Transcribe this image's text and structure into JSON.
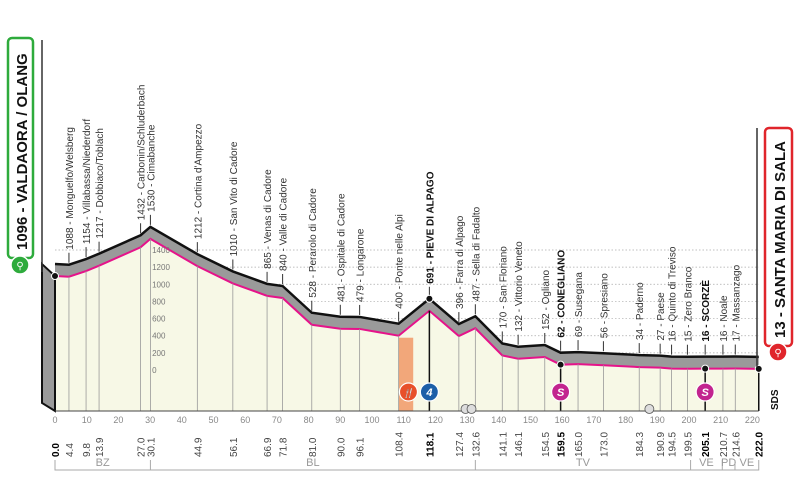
{
  "chart_data": {
    "type": "area",
    "title": "",
    "xlabel": "",
    "ylabel": "",
    "xlim": [
      0,
      222
    ],
    "ylim": [
      0,
      1400
    ],
    "grid": true,
    "x_ticks": [
      0,
      10,
      20,
      30,
      40,
      50,
      60,
      70,
      80,
      90,
      100,
      110,
      120,
      130,
      140,
      150,
      160,
      170,
      180,
      190,
      200,
      210,
      220
    ],
    "y_ticks": [
      0,
      200,
      400,
      600,
      800,
      1000,
      1200,
      1400
    ],
    "start": {
      "label": "1096 - VALDAORA / OLANG",
      "km": 0,
      "elevation": 1096
    },
    "finish": {
      "label": "13 - SANTA MARIA DI SALA",
      "km": 222,
      "elevation": 13
    },
    "points": [
      {
        "km": "0.0",
        "x": 0,
        "elev": 1096,
        "place": "",
        "bold": true
      },
      {
        "km": "4.4",
        "x": 4.4,
        "elev": 1088,
        "place": "1088 - Monguelfo/Welsberg"
      },
      {
        "km": "9.8",
        "x": 9.8,
        "elev": 1154,
        "place": "1154 - Villabassa/Niederdorf"
      },
      {
        "km": "13.9",
        "x": 13.9,
        "elev": 1217,
        "place": "1217 - Dobbiaco/Toblach"
      },
      {
        "km": "27.0",
        "x": 27.0,
        "elev": 1432,
        "place": "1432 - Carbonin/Schluderbach"
      },
      {
        "km": "30.1",
        "x": 30.1,
        "elev": 1530,
        "place": "1530 - Cimabanche"
      },
      {
        "km": "44.9",
        "x": 44.9,
        "elev": 1212,
        "place": "1212 - Cortina d'Ampezzo"
      },
      {
        "km": "56.1",
        "x": 56.1,
        "elev": 1010,
        "place": "1010 - San Vito di Cadore"
      },
      {
        "km": "66.9",
        "x": 66.9,
        "elev": 865,
        "place": "865 - Venas di Cadore"
      },
      {
        "km": "71.8",
        "x": 71.8,
        "elev": 840,
        "place": "840 - Valle di Cadore"
      },
      {
        "km": "81.0",
        "x": 81.0,
        "elev": 528,
        "place": "528 - Perarolo di Cadore"
      },
      {
        "km": "90.0",
        "x": 90.0,
        "elev": 481,
        "place": "481 - Ospitale di Cadore"
      },
      {
        "km": "96.1",
        "x": 96.1,
        "elev": 479,
        "place": "479 - Longarone"
      },
      {
        "km": "108.4",
        "x": 108.4,
        "elev": 400,
        "place": "400 - Ponte nelle Alpi"
      },
      {
        "km": "118.1",
        "x": 118.1,
        "elev": 691,
        "place": "691 - PIEVE DI ALPAGO",
        "bold": true
      },
      {
        "km": "127.4",
        "x": 127.4,
        "elev": 396,
        "place": "396 - Farra di Alpago"
      },
      {
        "km": "132.6",
        "x": 132.6,
        "elev": 487,
        "place": "487 - Sella di Fadalto"
      },
      {
        "km": "141.1",
        "x": 141.1,
        "elev": 170,
        "place": "170 - San Floriano"
      },
      {
        "km": "146.1",
        "x": 146.1,
        "elev": 132,
        "place": "132 - Vittorio Veneto"
      },
      {
        "km": "154.5",
        "x": 154.5,
        "elev": 152,
        "place": "152 - Ogliano"
      },
      {
        "km": "159.5",
        "x": 159.5,
        "elev": 62,
        "place": "62 - CONEGLIANO",
        "bold": true
      },
      {
        "km": "165.0",
        "x": 165.0,
        "elev": 69,
        "place": "69 - Susegana"
      },
      {
        "km": "173.0",
        "x": 173.0,
        "elev": 56,
        "place": "56 - Spresiano"
      },
      {
        "km": "184.3",
        "x": 184.3,
        "elev": 34,
        "place": "34 - Paderno"
      },
      {
        "km": "190.9",
        "x": 190.9,
        "elev": 27,
        "place": "27 - Paese"
      },
      {
        "km": "194.5",
        "x": 194.5,
        "elev": 16,
        "place": "16 - Quinto di Treviso"
      },
      {
        "km": "199.5",
        "x": 199.5,
        "elev": 15,
        "place": "15 - Zero Branco"
      },
      {
        "km": "205.1",
        "x": 205.1,
        "elev": 16,
        "place": "16 - SCORZÈ",
        "bold": true
      },
      {
        "km": "210.7",
        "x": 210.7,
        "elev": 16,
        "place": "16 - Noale"
      },
      {
        "km": "214.6",
        "x": 214.6,
        "elev": 17,
        "place": "17 - Massanzago"
      },
      {
        "km": "222.0",
        "x": 222.0,
        "elev": 13,
        "place": "",
        "bold": true
      }
    ],
    "feed_zone": [
      108.4,
      113
    ],
    "markers": [
      {
        "type": "feed-zone",
        "km": 111.5,
        "color": "#e8502a"
      },
      {
        "type": "gpm-cat-4",
        "km": 118.1,
        "label": "4",
        "color": "#1d5fa8"
      },
      {
        "type": "sprint",
        "km": 159.5,
        "label": "S",
        "color": "#c2248f"
      },
      {
        "type": "sprint",
        "km": 205.1,
        "label": "S",
        "color": "#c2248f"
      },
      {
        "type": "tunnel",
        "km": 129.5
      },
      {
        "type": "railway-crossing",
        "km": 187.5
      }
    ],
    "regions": [
      {
        "label": "BZ",
        "from": 0,
        "to": 30.1
      },
      {
        "label": "BL",
        "from": 30.1,
        "to": 132.6
      },
      {
        "label": "TV",
        "from": 132.6,
        "to": 200.5
      },
      {
        "label": "VE",
        "from": 200.5,
        "to": 210.5
      },
      {
        "label": "PD",
        "from": 210.5,
        "to": 214.5
      },
      {
        "label": "VE",
        "from": 214.5,
        "to": 222
      }
    ],
    "sds_label": "SDS",
    "colors": {
      "profile_line": "#e5138a",
      "profile_fill": "#f7f8e6",
      "band": "#9a9a9a",
      "start": "#2eab3c",
      "finish": "#e0252b"
    }
  }
}
